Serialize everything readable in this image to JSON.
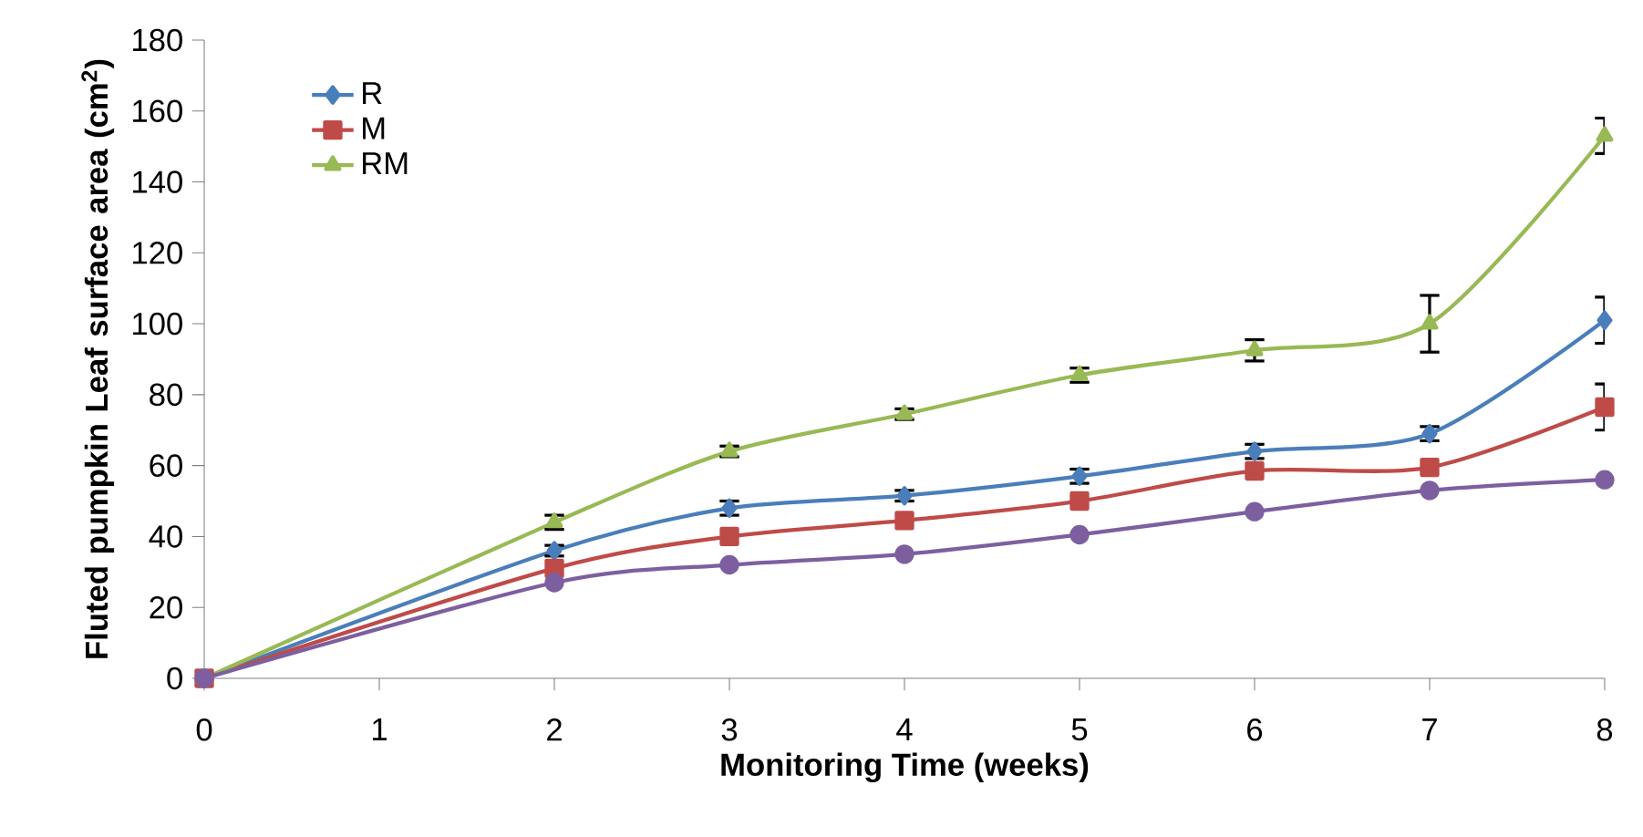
{
  "chart_data": {
    "type": "line",
    "xlabel": "Monitoring Time (weeks)",
    "ylabel": "Fluted pumpkin Leaf surface area (cm$^{2}$)",
    "x": [
      0,
      2,
      3,
      4,
      5,
      6,
      7,
      8
    ],
    "series": [
      {
        "name": "R",
        "color": "#4a7ebb",
        "marker": "diamond",
        "values": [
          0,
          36,
          48,
          51.5,
          57,
          64,
          69,
          101
        ],
        "errors": [
          null,
          1.5,
          2,
          1.5,
          2,
          2,
          2,
          6.5
        ]
      },
      {
        "name": "M",
        "color": "#be4b48",
        "marker": "square",
        "values": [
          0,
          31,
          40,
          44.5,
          50,
          58.5,
          59.5,
          76.5
        ],
        "errors": [
          null,
          null,
          null,
          null,
          null,
          null,
          null,
          6.5
        ]
      },
      {
        "name": "RM",
        "color": "#98b954",
        "marker": "triangle",
        "values": [
          0,
          44,
          64,
          74.5,
          85.5,
          92.5,
          100,
          153
        ],
        "errors": [
          null,
          2,
          1.5,
          1.5,
          2,
          3,
          8,
          5
        ]
      },
      {
        "color": "#7d5fa0",
        "marker": "circle",
        "values": [
          0,
          27,
          32,
          35,
          40.5,
          47,
          53,
          56
        ]
      }
    ],
    "xlim": [
      0,
      8
    ],
    "xticks": [
      0,
      1,
      2,
      3,
      4,
      5,
      6,
      7,
      8
    ],
    "ylim": [
      0,
      180
    ],
    "yticks": [
      0,
      20,
      40,
      60,
      80,
      100,
      120,
      140,
      160,
      180
    ],
    "grid": false,
    "legend": "top left",
    "line_style": "solid"
  }
}
